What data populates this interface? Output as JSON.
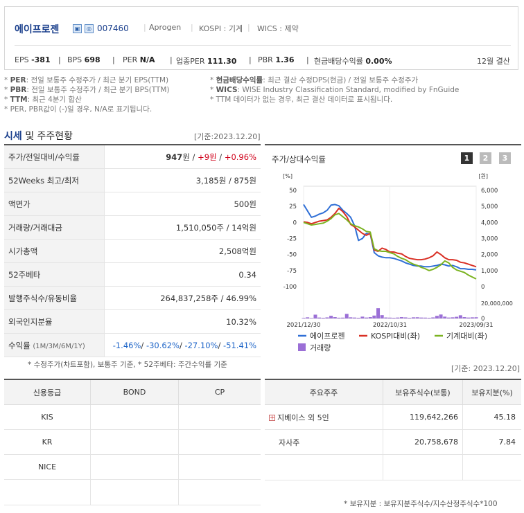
{
  "header": {
    "company_name": "에이프로젠",
    "code": "007460",
    "english_name": "Aprogen",
    "market": "KOSPI : 기계",
    "wics": "WICS : 제약",
    "icons": [
      "building-icon",
      "globe-icon"
    ],
    "metrics": [
      {
        "label": "EPS",
        "value": "-381"
      },
      {
        "label": "BPS",
        "value": "698"
      },
      {
        "label": "PER",
        "value": "N/A"
      },
      {
        "label": "업종PER",
        "value": "111.30"
      },
      {
        "label": "PBR",
        "value": "1.36"
      },
      {
        "label": "현금배당수익률",
        "value": "0.00%"
      }
    ],
    "fiscal": "12월 결산"
  },
  "notes": {
    "left": [
      {
        "term": "PER",
        "text": ": 전일 보통주 수정주가 / 최근 분기 EPS(TTM)"
      },
      {
        "term": "PBR",
        "text": ": 전일 보통주 수정주가 / 최근 분기 BPS(TTM)"
      },
      {
        "term": "TTM",
        "text": ": 최근 4분기 합산"
      },
      {
        "term": "",
        "text": "PER, PBR값이 (-)일 경우, N/A로 표기됩니다."
      }
    ],
    "right": [
      {
        "term": "현금배당수익률",
        "text": ": 최근 결산 수정DPS(현금) / 전일 보통주 수정주가"
      },
      {
        "term": "WICS",
        "text": ": WISE Industry Classification Standard, modified by FnGuide"
      },
      {
        "term": "",
        "text": "TTM 데이터가 없는 경우, 최근 결산 데이터로 표시됩니다."
      }
    ]
  },
  "section": {
    "title_hl": "시세",
    "title_rest": " 및 주주현황",
    "base_date": "[기준:2023.12.20]"
  },
  "price_table": [
    {
      "key": "주가/전일대비/수익률",
      "v1": "947",
      "v1_unit": "원",
      "v2": "+9원",
      "v3": "+0.96%"
    },
    {
      "key": "52Weeks 최고/최저",
      "value": "3,185원 / 875원"
    },
    {
      "key": "액면가",
      "value": "500원"
    },
    {
      "key": "거래량/거래대금",
      "value": "1,510,050주 / 14억원"
    },
    {
      "key": "시가총액",
      "value": "2,508억원"
    },
    {
      "key": "52주베타",
      "value": "0.34"
    },
    {
      "key": "발행주식수/유동비율",
      "value": "264,837,258주 / 46.99%"
    },
    {
      "key": "외국인지분율",
      "value": "10.32%"
    },
    {
      "key": "수익률",
      "key_sub": "(1M/3M/6M/1Y)",
      "returns": [
        "-1.46%",
        "-30.62%",
        "-27.10%",
        "-51.41%"
      ]
    }
  ],
  "price_note": "* 수정주가(차트포함), 보통주 기준, * 52주베타: 주간수익률 기준",
  "chart_panel": {
    "title": "주가/상대수익률",
    "period_buttons": [
      "1",
      "2",
      "3"
    ],
    "active_button": 0
  },
  "chart_data": {
    "type": "line",
    "left_unit": "[%]",
    "right_unit": "[원]",
    "left_ticks": [
      "50",
      "25",
      "0",
      "-25",
      "-50",
      "-75",
      "-100"
    ],
    "left_ylim": [
      -100,
      50
    ],
    "right_ticks": [
      "6,000",
      "5,000",
      "4,000",
      "3,000",
      "2,000",
      "1,000",
      "0"
    ],
    "right_ylim": [
      0,
      6000
    ],
    "volume_tick": "20,000,000",
    "volume_ticks": [
      "20,000,000",
      "0"
    ],
    "volume_ylim": [
      0,
      20000000
    ],
    "x_ticks": [
      "2021/12/30",
      "2022/10/31",
      "2023/09/31"
    ],
    "x_tick_index": [
      0,
      22,
      44
    ],
    "series": [
      {
        "name": "에이프로젠",
        "color": "#2f6fd6",
        "axis": "left",
        "values": [
          28,
          18,
          8,
          10,
          13,
          15,
          19,
          27,
          28,
          26,
          19,
          14,
          8,
          -5,
          -28,
          -25,
          -17,
          -18,
          -47,
          -52,
          -54,
          -55,
          -55,
          -56,
          -58,
          -60,
          -63,
          -65,
          -67,
          -68,
          -68,
          -69,
          -69,
          -68,
          -67,
          -65,
          -66,
          -68,
          -67,
          -69,
          -72,
          -72,
          -73,
          -73,
          -74
        ]
      },
      {
        "name": "KOSPI대비(좌)",
        "color": "#d93025",
        "axis": "left",
        "values": [
          1,
          0,
          -2,
          0,
          2,
          3,
          4,
          8,
          14,
          22,
          17,
          9,
          -3,
          -7,
          -12,
          -17,
          -20,
          -17,
          -43,
          -45,
          -40,
          -42,
          -46,
          -46,
          -48,
          -49,
          -53,
          -56,
          -57,
          -58,
          -58,
          -57,
          -55,
          -52,
          -46,
          -50,
          -55,
          -58,
          -58,
          -59,
          -62,
          -63,
          -65,
          -67,
          -69
        ]
      },
      {
        "name": "기계대비(좌)",
        "color": "#7bb321",
        "axis": "left",
        "values": [
          0,
          -2,
          -4,
          -3,
          -2,
          -1,
          2,
          6,
          12,
          14,
          9,
          4,
          -2,
          -5,
          -7,
          -10,
          -14,
          -15,
          -41,
          -44,
          -45,
          -45,
          -47,
          -49,
          -53,
          -56,
          -58,
          -62,
          -65,
          -67,
          -70,
          -72,
          -75,
          -73,
          -70,
          -66,
          -60,
          -63,
          -70,
          -74,
          -76,
          -78,
          -82,
          -85,
          -88
        ]
      },
      {
        "name": "거래량",
        "color": "#9b6fd6",
        "axis": "volume",
        "type": "bar",
        "values": [
          800000,
          1500000,
          600000,
          5000000,
          1200000,
          900000,
          1400000,
          3500000,
          1800000,
          1000000,
          1100000,
          6000000,
          1500000,
          1200000,
          900000,
          2400000,
          1200000,
          1800000,
          3800000,
          13500000,
          4400000,
          1300000,
          1100000,
          900000,
          1200000,
          1800000,
          1400000,
          900000,
          1500000,
          1600000,
          1200000,
          1100000,
          900000,
          1400000,
          3400000,
          5200000,
          2400000,
          1200000,
          1500000,
          2200000,
          4200000,
          1800000,
          1200000,
          1500000,
          1600000
        ]
      }
    ],
    "legend": [
      "에이프로젠",
      "KOSPI대비(좌)",
      "기계대비(좌)",
      "거래량"
    ],
    "legend_position": "bottom"
  },
  "right_base_date": "[기준: 2023.12.20]",
  "credit": {
    "headers": [
      "신용등급",
      "BOND",
      "CP"
    ],
    "rows": [
      [
        "KIS",
        "",
        ""
      ],
      [
        "KR",
        "",
        ""
      ],
      [
        "NICE",
        "",
        ""
      ]
    ]
  },
  "holders": {
    "headers": [
      "주요주주",
      "보유주식수(보통)",
      "보유지분(%)"
    ],
    "rows": [
      {
        "name": "지베이스 외 5인",
        "expand": "+",
        "shares": "119,642,266",
        "pct": "45.18"
      },
      {
        "name": "자사주",
        "expand": "",
        "shares": "20,758,678",
        "pct": "7.84"
      }
    ],
    "note": "* 보유지분 : 보유지분주식수/지수산정주식수*100"
  }
}
